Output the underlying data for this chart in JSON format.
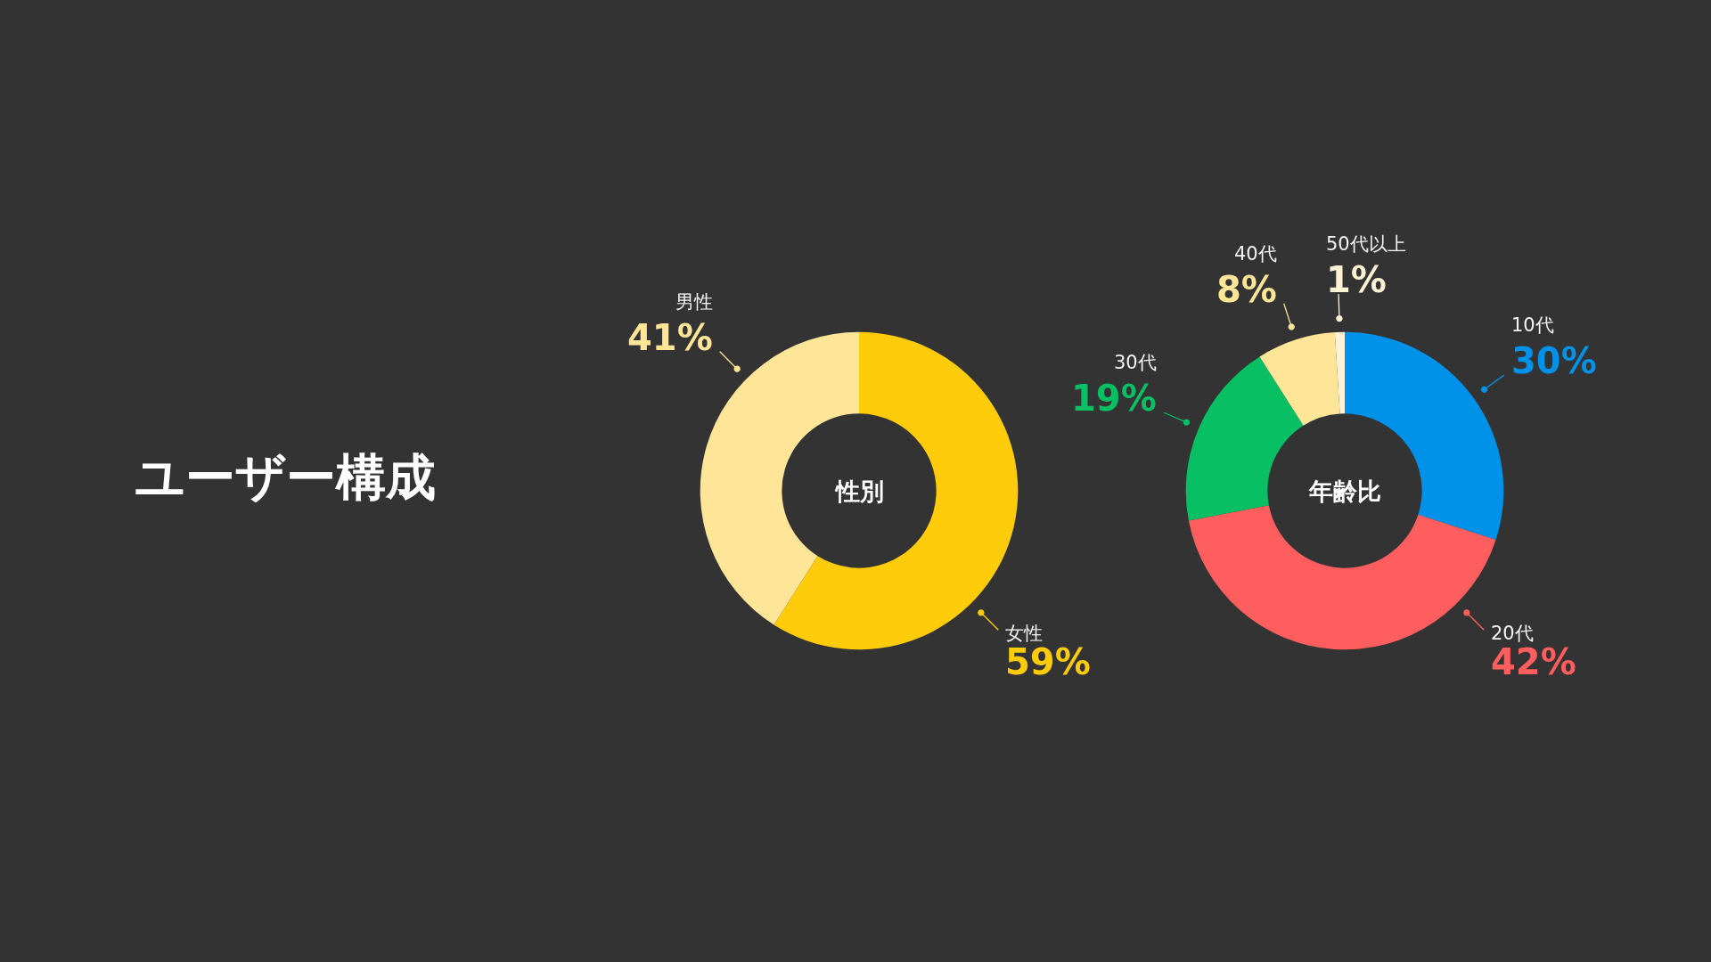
{
  "chart_data": [
    {
      "type": "other",
      "title": "ユーザー構成"
    },
    {
      "type": "donut",
      "title": "性別",
      "categories": [
        "女性",
        "男性"
      ],
      "values": [
        59,
        41
      ],
      "colors": [
        "#fecc0a",
        "#ffe597"
      ],
      "value_labels": [
        "59%",
        "41%"
      ]
    },
    {
      "type": "donut",
      "title": "年齢比",
      "categories": [
        "10代",
        "20代",
        "30代",
        "40代",
        "50代以上"
      ],
      "values": [
        30,
        42,
        19,
        8,
        1
      ],
      "colors": [
        "#0091e8",
        "#ff5e5e",
        "#08bf63",
        "#ffe597",
        "#fff1d4"
      ],
      "value_labels": [
        "30%",
        "42%",
        "19%",
        "8%",
        "1%"
      ]
    }
  ]
}
